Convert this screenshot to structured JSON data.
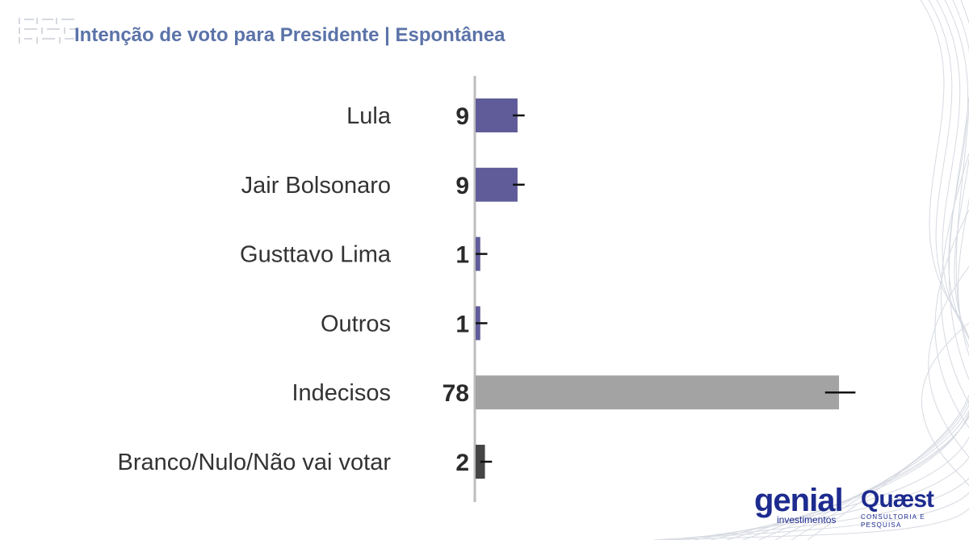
{
  "header": {
    "title": "Intenção de voto para Presidente | Espontânea"
  },
  "colors": {
    "title": "#5b73a8",
    "candidate_bar": "#5f5c99",
    "undecided_bar": "#a3a3a3",
    "blank_bar": "#454545",
    "axis": "#bdbdbd",
    "brand": "#1d2b8f"
  },
  "chart_data": {
    "type": "bar",
    "orientation": "horizontal",
    "title": "Intenção de voto para Presidente | Espontânea",
    "categories": [
      "Lula",
      "Jair Bolsonaro",
      "Gusttavo Lima",
      "Outros",
      "Indecisos",
      "Branco/Nulo/Não vai votar"
    ],
    "values": [
      9,
      9,
      1,
      1,
      78,
      2
    ],
    "error_margin": [
      1,
      1,
      1,
      1,
      3,
      1
    ],
    "bar_colors": [
      "#5f5c99",
      "#5f5c99",
      "#5f5c99",
      "#5f5c99",
      "#a3a3a3",
      "#454545"
    ],
    "xlim": [
      0,
      100
    ],
    "xlabel": "",
    "ylabel": "",
    "grid": false
  },
  "logos": {
    "genial": {
      "name": "genial",
      "subtitle": "investimentos"
    },
    "quaest": {
      "name": "Quæst",
      "subtitle": "CONSULTORIA E PESQUISA"
    }
  }
}
